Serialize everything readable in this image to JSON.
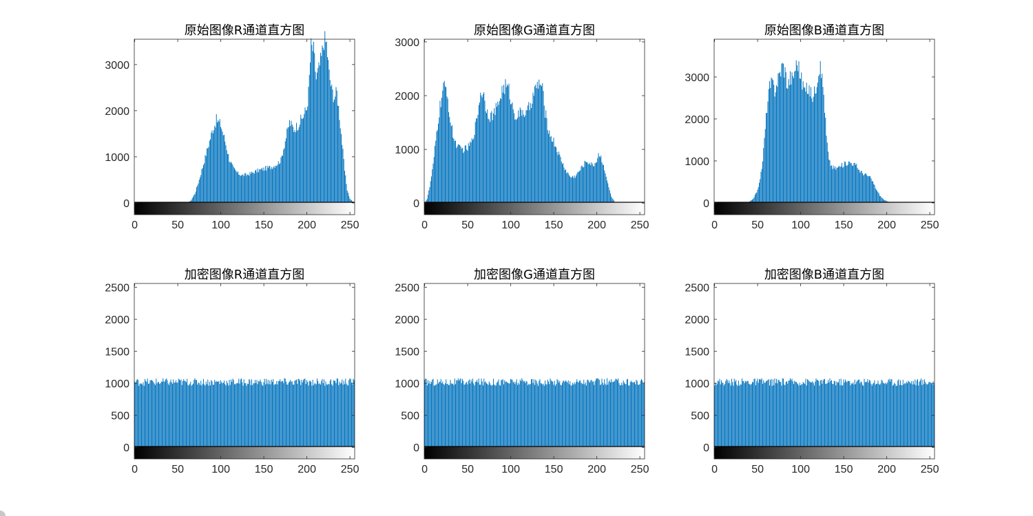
{
  "figure": {
    "background": "#ffffff",
    "bar_color": "#0072bd",
    "axis_color": "#262626",
    "colorbar": [
      "#000000",
      "#ffffff"
    ]
  },
  "chart_data": [
    {
      "type": "bar",
      "title": "原始图像R通道直方图",
      "xlabel": "",
      "ylabel": "",
      "xlim": [
        0,
        255
      ],
      "ylim": [
        -255,
        3550
      ],
      "xticks": [
        "0",
        "50",
        "100",
        "150",
        "200",
        "250"
      ],
      "yticks": [
        "0",
        "1000",
        "2000",
        "3000"
      ],
      "grid": false,
      "x": "0..255 (pixel intensity, bin width 1)",
      "profile_points": [
        [
          0,
          0
        ],
        [
          60,
          0
        ],
        [
          65,
          40
        ],
        [
          70,
          200
        ],
        [
          75,
          500
        ],
        [
          80,
          850
        ],
        [
          85,
          1200
        ],
        [
          90,
          1550
        ],
        [
          95,
          1800
        ],
        [
          100,
          1700
        ],
        [
          105,
          1350
        ],
        [
          110,
          950
        ],
        [
          115,
          740
        ],
        [
          120,
          640
        ],
        [
          125,
          600
        ],
        [
          130,
          610
        ],
        [
          135,
          640
        ],
        [
          140,
          680
        ],
        [
          145,
          710
        ],
        [
          150,
          740
        ],
        [
          155,
          760
        ],
        [
          160,
          790
        ],
        [
          165,
          840
        ],
        [
          170,
          930
        ],
        [
          175,
          1350
        ],
        [
          180,
          1750
        ],
        [
          185,
          1600
        ],
        [
          190,
          1700
        ],
        [
          195,
          1850
        ],
        [
          200,
          2050
        ],
        [
          202,
          2400
        ],
        [
          205,
          3400
        ],
        [
          208,
          3300
        ],
        [
          211,
          2700
        ],
        [
          214,
          2900
        ],
        [
          217,
          3150
        ],
        [
          220,
          3550
        ],
        [
          223,
          3450
        ],
        [
          226,
          2800
        ],
        [
          229,
          2450
        ],
        [
          232,
          2300
        ],
        [
          235,
          2400
        ],
        [
          238,
          1900
        ],
        [
          241,
          1300
        ],
        [
          244,
          700
        ],
        [
          247,
          280
        ],
        [
          250,
          90
        ],
        [
          255,
          0
        ]
      ],
      "colorbar_gradient": [
        "#000000",
        "#ffffff"
      ]
    },
    {
      "type": "bar",
      "title": "原始图像G通道直方图",
      "xlabel": "",
      "ylabel": "",
      "xlim": [
        0,
        255
      ],
      "ylim": [
        -215,
        3050
      ],
      "xticks": [
        "0",
        "50",
        "100",
        "150",
        "200",
        "250"
      ],
      "yticks": [
        "0",
        "1000",
        "2000",
        "3000"
      ],
      "grid": false,
      "x": "0..255 (pixel intensity, bin width 1)",
      "profile_points": [
        [
          0,
          0
        ],
        [
          3,
          80
        ],
        [
          6,
          300
        ],
        [
          10,
          700
        ],
        [
          14,
          1300
        ],
        [
          18,
          1800
        ],
        [
          22,
          2150
        ],
        [
          26,
          2100
        ],
        [
          30,
          1500
        ],
        [
          35,
          1150
        ],
        [
          40,
          1020
        ],
        [
          45,
          1000
        ],
        [
          50,
          1020
        ],
        [
          55,
          1150
        ],
        [
          60,
          1500
        ],
        [
          65,
          2050
        ],
        [
          68,
          2080
        ],
        [
          72,
          1750
        ],
        [
          76,
          1620
        ],
        [
          80,
          1650
        ],
        [
          85,
          1800
        ],
        [
          90,
          2100
        ],
        [
          94,
          2180
        ],
        [
          98,
          2100
        ],
        [
          102,
          1800
        ],
        [
          106,
          1620
        ],
        [
          110,
          1650
        ],
        [
          114,
          1720
        ],
        [
          118,
          1640
        ],
        [
          122,
          1800
        ],
        [
          126,
          2000
        ],
        [
          130,
          2150
        ],
        [
          134,
          2250
        ],
        [
          137,
          2100
        ],
        [
          140,
          1700
        ],
        [
          145,
          1300
        ],
        [
          150,
          1150
        ],
        [
          155,
          950
        ],
        [
          160,
          750
        ],
        [
          165,
          580
        ],
        [
          170,
          480
        ],
        [
          175,
          500
        ],
        [
          180,
          600
        ],
        [
          185,
          720
        ],
        [
          188,
          780
        ],
        [
          191,
          760
        ],
        [
          195,
          700
        ],
        [
          199,
          750
        ],
        [
          202,
          920
        ],
        [
          205,
          850
        ],
        [
          209,
          650
        ],
        [
          213,
          350
        ],
        [
          217,
          120
        ],
        [
          221,
          20
        ],
        [
          226,
          0
        ],
        [
          255,
          0
        ]
      ],
      "colorbar_gradient": [
        "#000000",
        "#ffffff"
      ]
    },
    {
      "type": "bar",
      "title": "原始图像B通道直方图",
      "xlabel": "",
      "ylabel": "",
      "xlim": [
        0,
        255
      ],
      "ylim": [
        -280,
        3900
      ],
      "xticks": [
        "0",
        "50",
        "100",
        "150",
        "200",
        "250"
      ],
      "yticks": [
        "0",
        "1000",
        "2000",
        "3000"
      ],
      "grid": false,
      "x": "0..255 (pixel intensity, bin width 1)",
      "profile_points": [
        [
          0,
          0
        ],
        [
          35,
          0
        ],
        [
          40,
          20
        ],
        [
          45,
          100
        ],
        [
          50,
          300
        ],
        [
          55,
          800
        ],
        [
          58,
          1500
        ],
        [
          61,
          2300
        ],
        [
          64,
          2750
        ],
        [
          67,
          2850
        ],
        [
          70,
          2700
        ],
        [
          73,
          2900
        ],
        [
          76,
          3100
        ],
        [
          79,
          3300
        ],
        [
          82,
          3150
        ],
        [
          85,
          2800
        ],
        [
          88,
          3000
        ],
        [
          91,
          2950
        ],
        [
          94,
          3250
        ],
        [
          97,
          3350
        ],
        [
          100,
          3000
        ],
        [
          103,
          2800
        ],
        [
          106,
          2650
        ],
        [
          109,
          2750
        ],
        [
          112,
          2600
        ],
        [
          115,
          2550
        ],
        [
          118,
          2800
        ],
        [
          121,
          3200
        ],
        [
          124,
          3150
        ],
        [
          127,
          2600
        ],
        [
          130,
          1600
        ],
        [
          133,
          1000
        ],
        [
          137,
          850
        ],
        [
          141,
          820
        ],
        [
          145,
          860
        ],
        [
          149,
          900
        ],
        [
          153,
          950
        ],
        [
          157,
          970
        ],
        [
          161,
          940
        ],
        [
          165,
          880
        ],
        [
          169,
          760
        ],
        [
          173,
          700
        ],
        [
          177,
          660
        ],
        [
          181,
          600
        ],
        [
          184,
          500
        ],
        [
          188,
          320
        ],
        [
          192,
          180
        ],
        [
          196,
          90
        ],
        [
          200,
          40
        ],
        [
          205,
          10
        ],
        [
          210,
          0
        ],
        [
          255,
          0
        ]
      ],
      "colorbar_gradient": [
        "#000000",
        "#ffffff"
      ]
    },
    {
      "type": "bar",
      "title": "加密图像R通道直方图",
      "xlabel": "",
      "ylabel": "",
      "xlim": [
        0,
        255
      ],
      "ylim": [
        -180,
        2560
      ],
      "xticks": [
        "0",
        "50",
        "100",
        "150",
        "200",
        "250"
      ],
      "yticks": [
        "0",
        "500",
        "1000",
        "1500",
        "2000",
        "2500"
      ],
      "grid": false,
      "x": "0..255 (pixel intensity, bin width 1)",
      "uniform_mean": 1020,
      "uniform_jitter": 60,
      "colorbar_gradient": [
        "#000000",
        "#ffffff"
      ]
    },
    {
      "type": "bar",
      "title": "加密图像G通道直方图",
      "xlabel": "",
      "ylabel": "",
      "xlim": [
        0,
        255
      ],
      "ylim": [
        -180,
        2560
      ],
      "xticks": [
        "0",
        "50",
        "100",
        "150",
        "200",
        "250"
      ],
      "yticks": [
        "0",
        "500",
        "1000",
        "1500",
        "2000",
        "2500"
      ],
      "grid": false,
      "x": "0..255 (pixel intensity, bin width 1)",
      "uniform_mean": 1020,
      "uniform_jitter": 60,
      "colorbar_gradient": [
        "#000000",
        "#ffffff"
      ]
    },
    {
      "type": "bar",
      "title": "加密图像B通道直方图",
      "xlabel": "",
      "ylabel": "",
      "xlim": [
        0,
        255
      ],
      "ylim": [
        -180,
        2560
      ],
      "xticks": [
        "0",
        "50",
        "100",
        "150",
        "200",
        "250"
      ],
      "yticks": [
        "0",
        "500",
        "1000",
        "1500",
        "2000",
        "2500"
      ],
      "grid": false,
      "x": "0..255 (pixel intensity, bin width 1)",
      "uniform_mean": 1020,
      "uniform_jitter": 60,
      "colorbar_gradient": [
        "#000000",
        "#ffffff"
      ]
    }
  ]
}
